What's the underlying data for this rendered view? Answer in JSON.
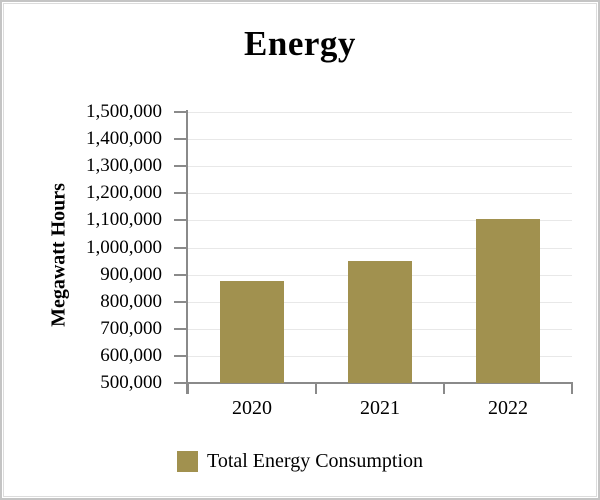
{
  "window": {
    "background": "#ffffff",
    "frame_border_color": "#c4c4c4",
    "frame_inner_border_color": "#dcdcdc"
  },
  "chart_data": {
    "type": "bar",
    "title": "Energy",
    "xlabel": "",
    "ylabel": "Megawatt Hours",
    "categories": [
      "2020",
      "2021",
      "2022"
    ],
    "series": [
      {
        "name": "Total Energy Consumption",
        "values": [
          875000,
          950000,
          1105000
        ]
      }
    ],
    "ylim": [
      500000,
      1500000
    ],
    "ytick_step": 100000,
    "ytick_labels": [
      "1,500,000",
      "1,400,000",
      "1,300,000",
      "1,200,000",
      "1,100,000",
      "1,000,000",
      "900,000",
      "800,000",
      "700,000",
      "600,000",
      "500,000"
    ],
    "grid": "horizontal",
    "legend_position": "bottom",
    "bar_color": "#A1914F",
    "axis_color": "#8a8a8a",
    "gridline_color": "#e8e8e8",
    "text_color": "#000000"
  }
}
